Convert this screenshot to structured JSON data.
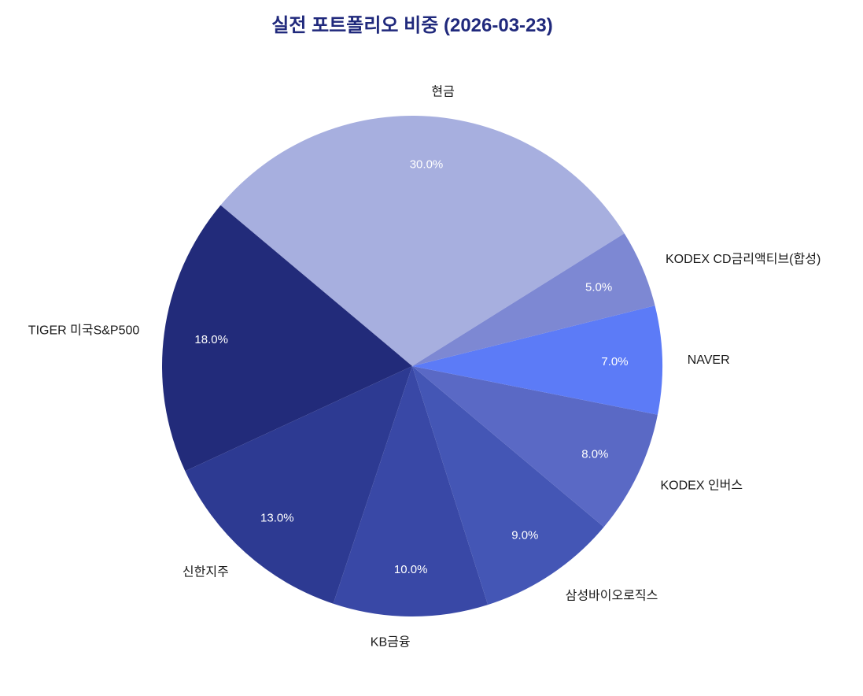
{
  "title": "실전 포트폴리오 비중 (2026-03-23)",
  "chart_data": {
    "type": "pie",
    "labels": [
      "현금",
      "TIGER 미국S&P500",
      "신한지주",
      "KB금융",
      "삼성바이오로직스",
      "KODEX 인버스",
      "NAVER",
      "KODEX CD금리액티브(합성)"
    ],
    "values": [
      30.0,
      18.0,
      13.0,
      10.0,
      9.0,
      8.0,
      7.0,
      5.0
    ],
    "pct_labels": [
      "30.0%",
      "18.0%",
      "13.0%",
      "10.0%",
      "9.0%",
      "8.0%",
      "7.0%",
      "5.0%"
    ],
    "colors": [
      "#a7afdf",
      "#222b7a",
      "#2d3a92",
      "#3948a6",
      "#4456b5",
      "#5a69c5",
      "#5c7bf7",
      "#7d88d3"
    ],
    "start_angle_deg": 32,
    "direction": "counterclockwise",
    "percent_label_color": "#ffffff",
    "label_color": "#1a1a1a",
    "title_color": "#20297c",
    "legend": "none",
    "background": "#ffffff"
  }
}
